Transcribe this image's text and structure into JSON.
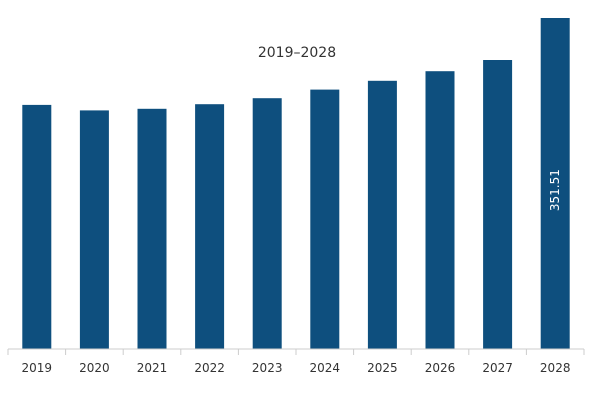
{
  "chart_data": {
    "type": "bar",
    "title": "2019–2028",
    "xlabel": "",
    "ylabel": "",
    "categories": [
      "2019",
      "2020",
      "2021",
      "2022",
      "2023",
      "2024",
      "2025",
      "2026",
      "2027",
      "2028"
    ],
    "values": [
      259.2,
      253.4,
      255.1,
      260.0,
      266.3,
      275.5,
      284.8,
      295.0,
      306.9,
      351.51
    ],
    "ylim": [
      0,
      360
    ],
    "grid": false,
    "legend": "none",
    "data_labels": [
      {
        "index": 9,
        "text": "351.51",
        "orientation": "vertical"
      }
    ],
    "colors": {
      "bar": "#0e4f7e",
      "axis": "#cccccc",
      "text": "#333333",
      "data_label": "#ffffff"
    }
  }
}
